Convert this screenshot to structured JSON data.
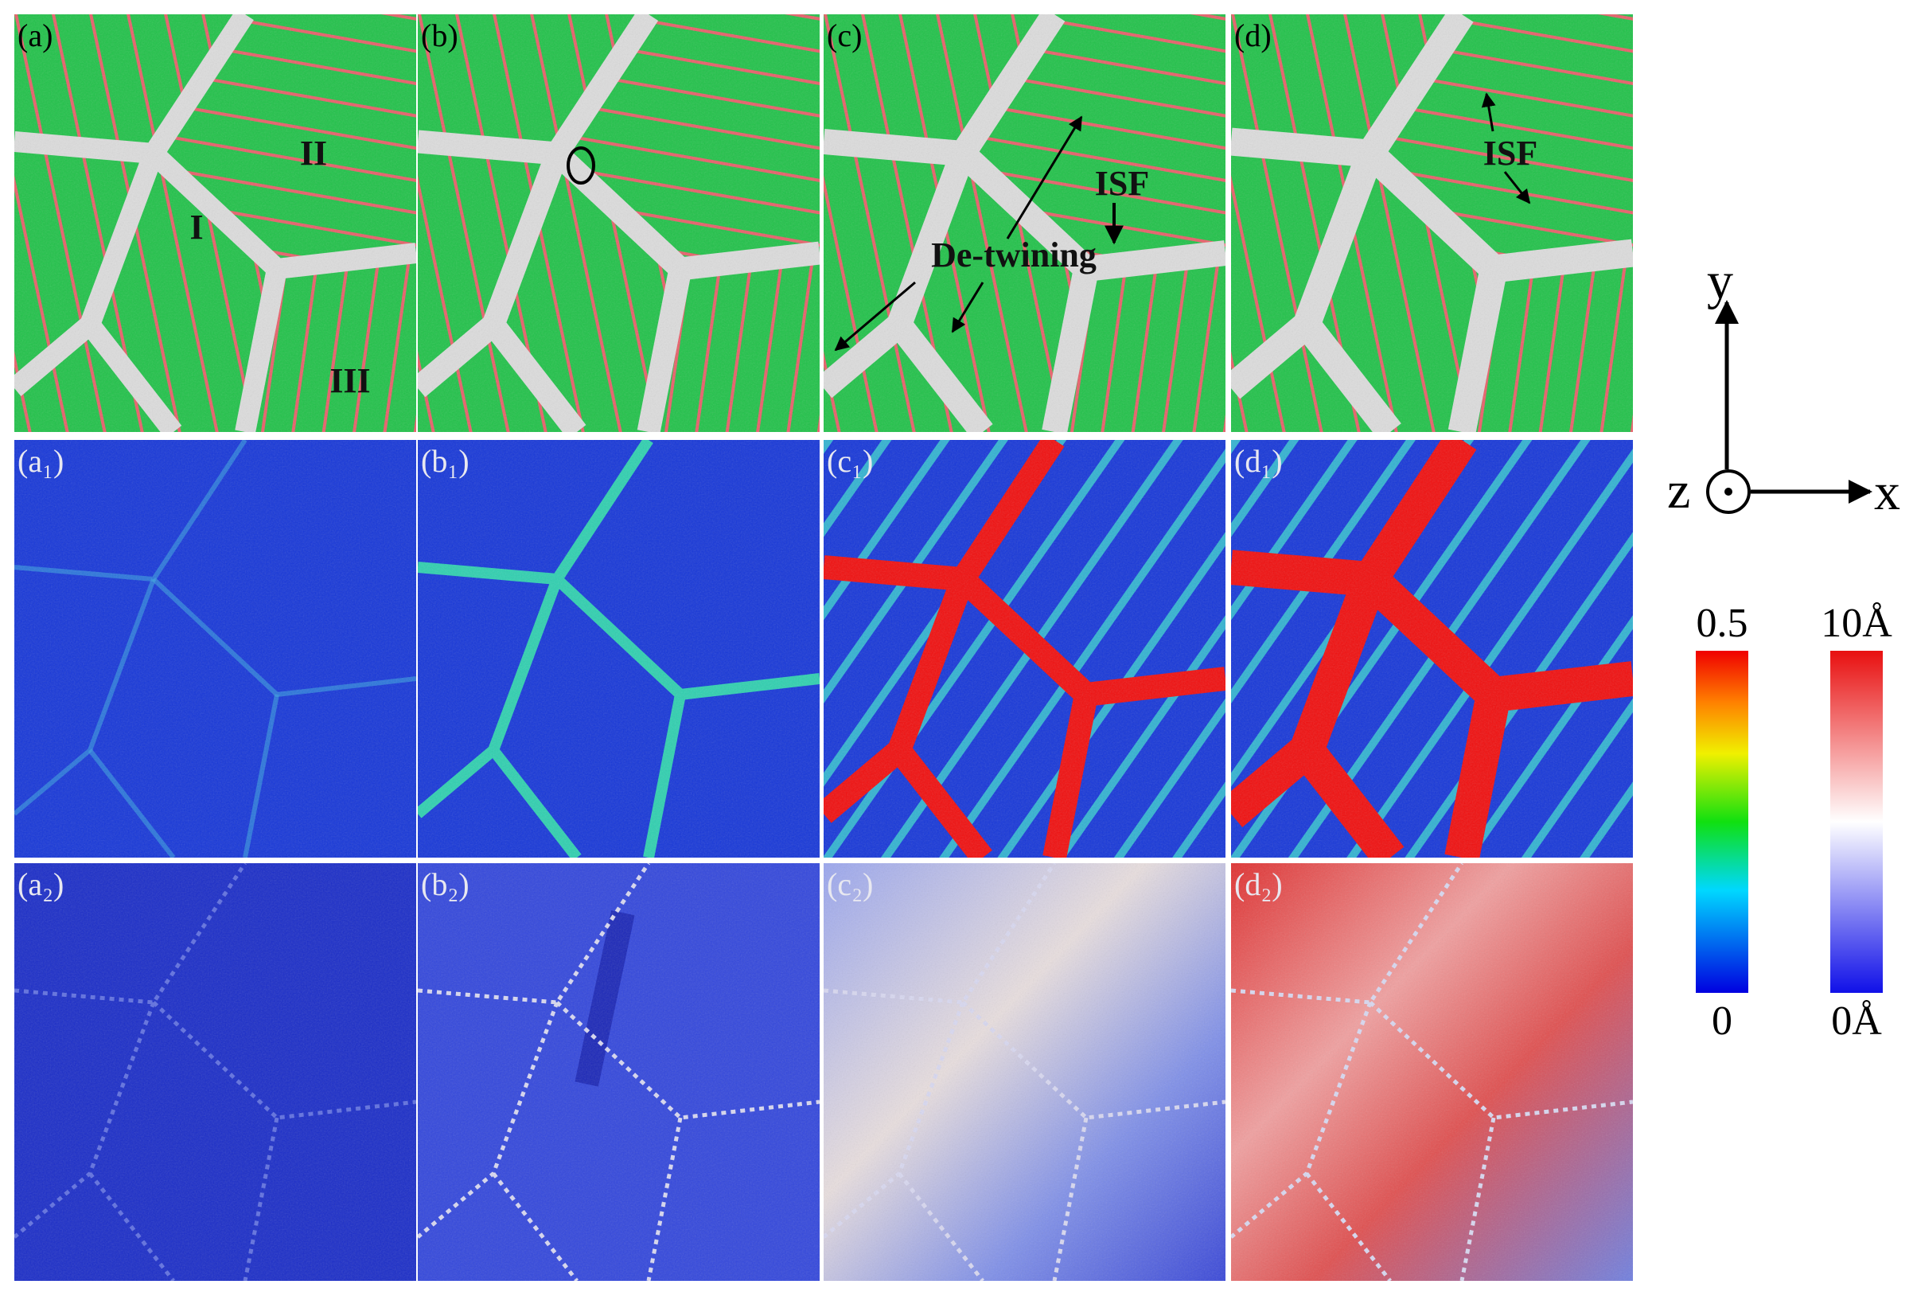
{
  "panels": [
    {
      "label": "(a)"
    },
    {
      "label": "(b)"
    },
    {
      "label": "(c)"
    },
    {
      "label": "(d)"
    },
    {
      "label": "(a₁)"
    },
    {
      "label": "(b₁)"
    },
    {
      "label": "(c₁)"
    },
    {
      "label": "(d₁)"
    },
    {
      "label": "(a₂)"
    },
    {
      "label": "(b₂)"
    },
    {
      "label": "(c₂)"
    },
    {
      "label": "(d₂)"
    }
  ],
  "annotations": {
    "grains": [
      "I",
      "II",
      "III"
    ],
    "isf_c": "ISF",
    "detwinning": "De-twining",
    "isf_d": "ISF"
  },
  "axes": {
    "y": "y",
    "z": "z",
    "x": "x"
  },
  "colorbars": [
    {
      "max_label": "0.5",
      "min_label": "0"
    },
    {
      "max_label": "10Å",
      "min_label": "0Å"
    }
  ]
}
